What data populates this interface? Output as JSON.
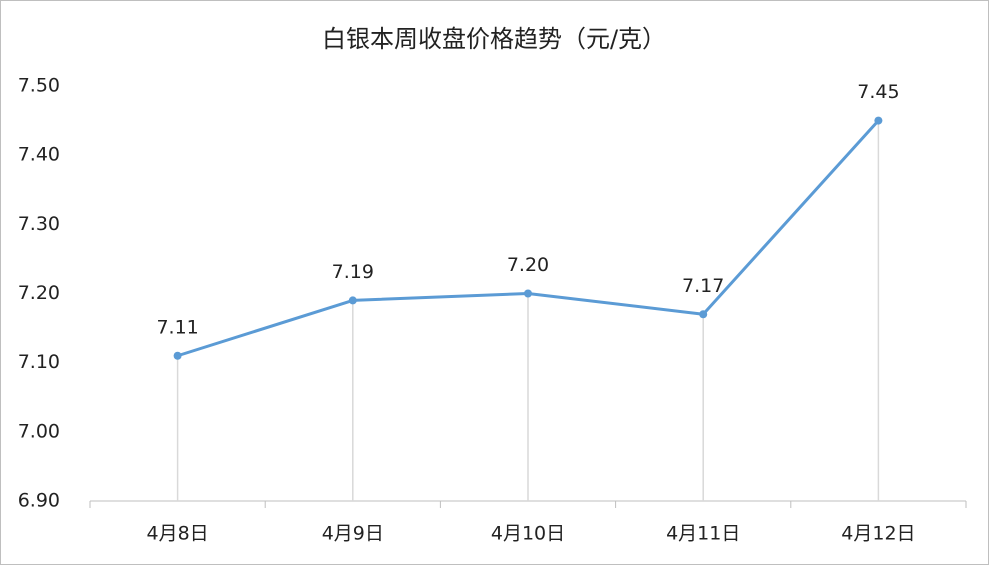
{
  "chart_data": {
    "type": "line",
    "title": "白银本周收盘价格趋势（元/克）",
    "categories": [
      "4月8日",
      "4月9日",
      "4月10日",
      "4月11日",
      "4月12日"
    ],
    "values": [
      7.11,
      7.19,
      7.2,
      7.17,
      7.45
    ],
    "value_labels": [
      "7.11",
      "7.19",
      "7.20",
      "7.17",
      "7.45"
    ],
    "color": "#5b9bd5",
    "ylim": [
      6.9,
      7.5
    ],
    "yticks": [
      {
        "value": 6.9,
        "label": "6.90"
      },
      {
        "value": 7.0,
        "label": "7.00"
      },
      {
        "value": 7.1,
        "label": "7.10"
      },
      {
        "value": 7.2,
        "label": "7.20"
      },
      {
        "value": 7.3,
        "label": "7.30"
      },
      {
        "value": 7.4,
        "label": "7.40"
      },
      {
        "value": 7.5,
        "label": "7.50"
      }
    ],
    "drop_lines": true
  }
}
